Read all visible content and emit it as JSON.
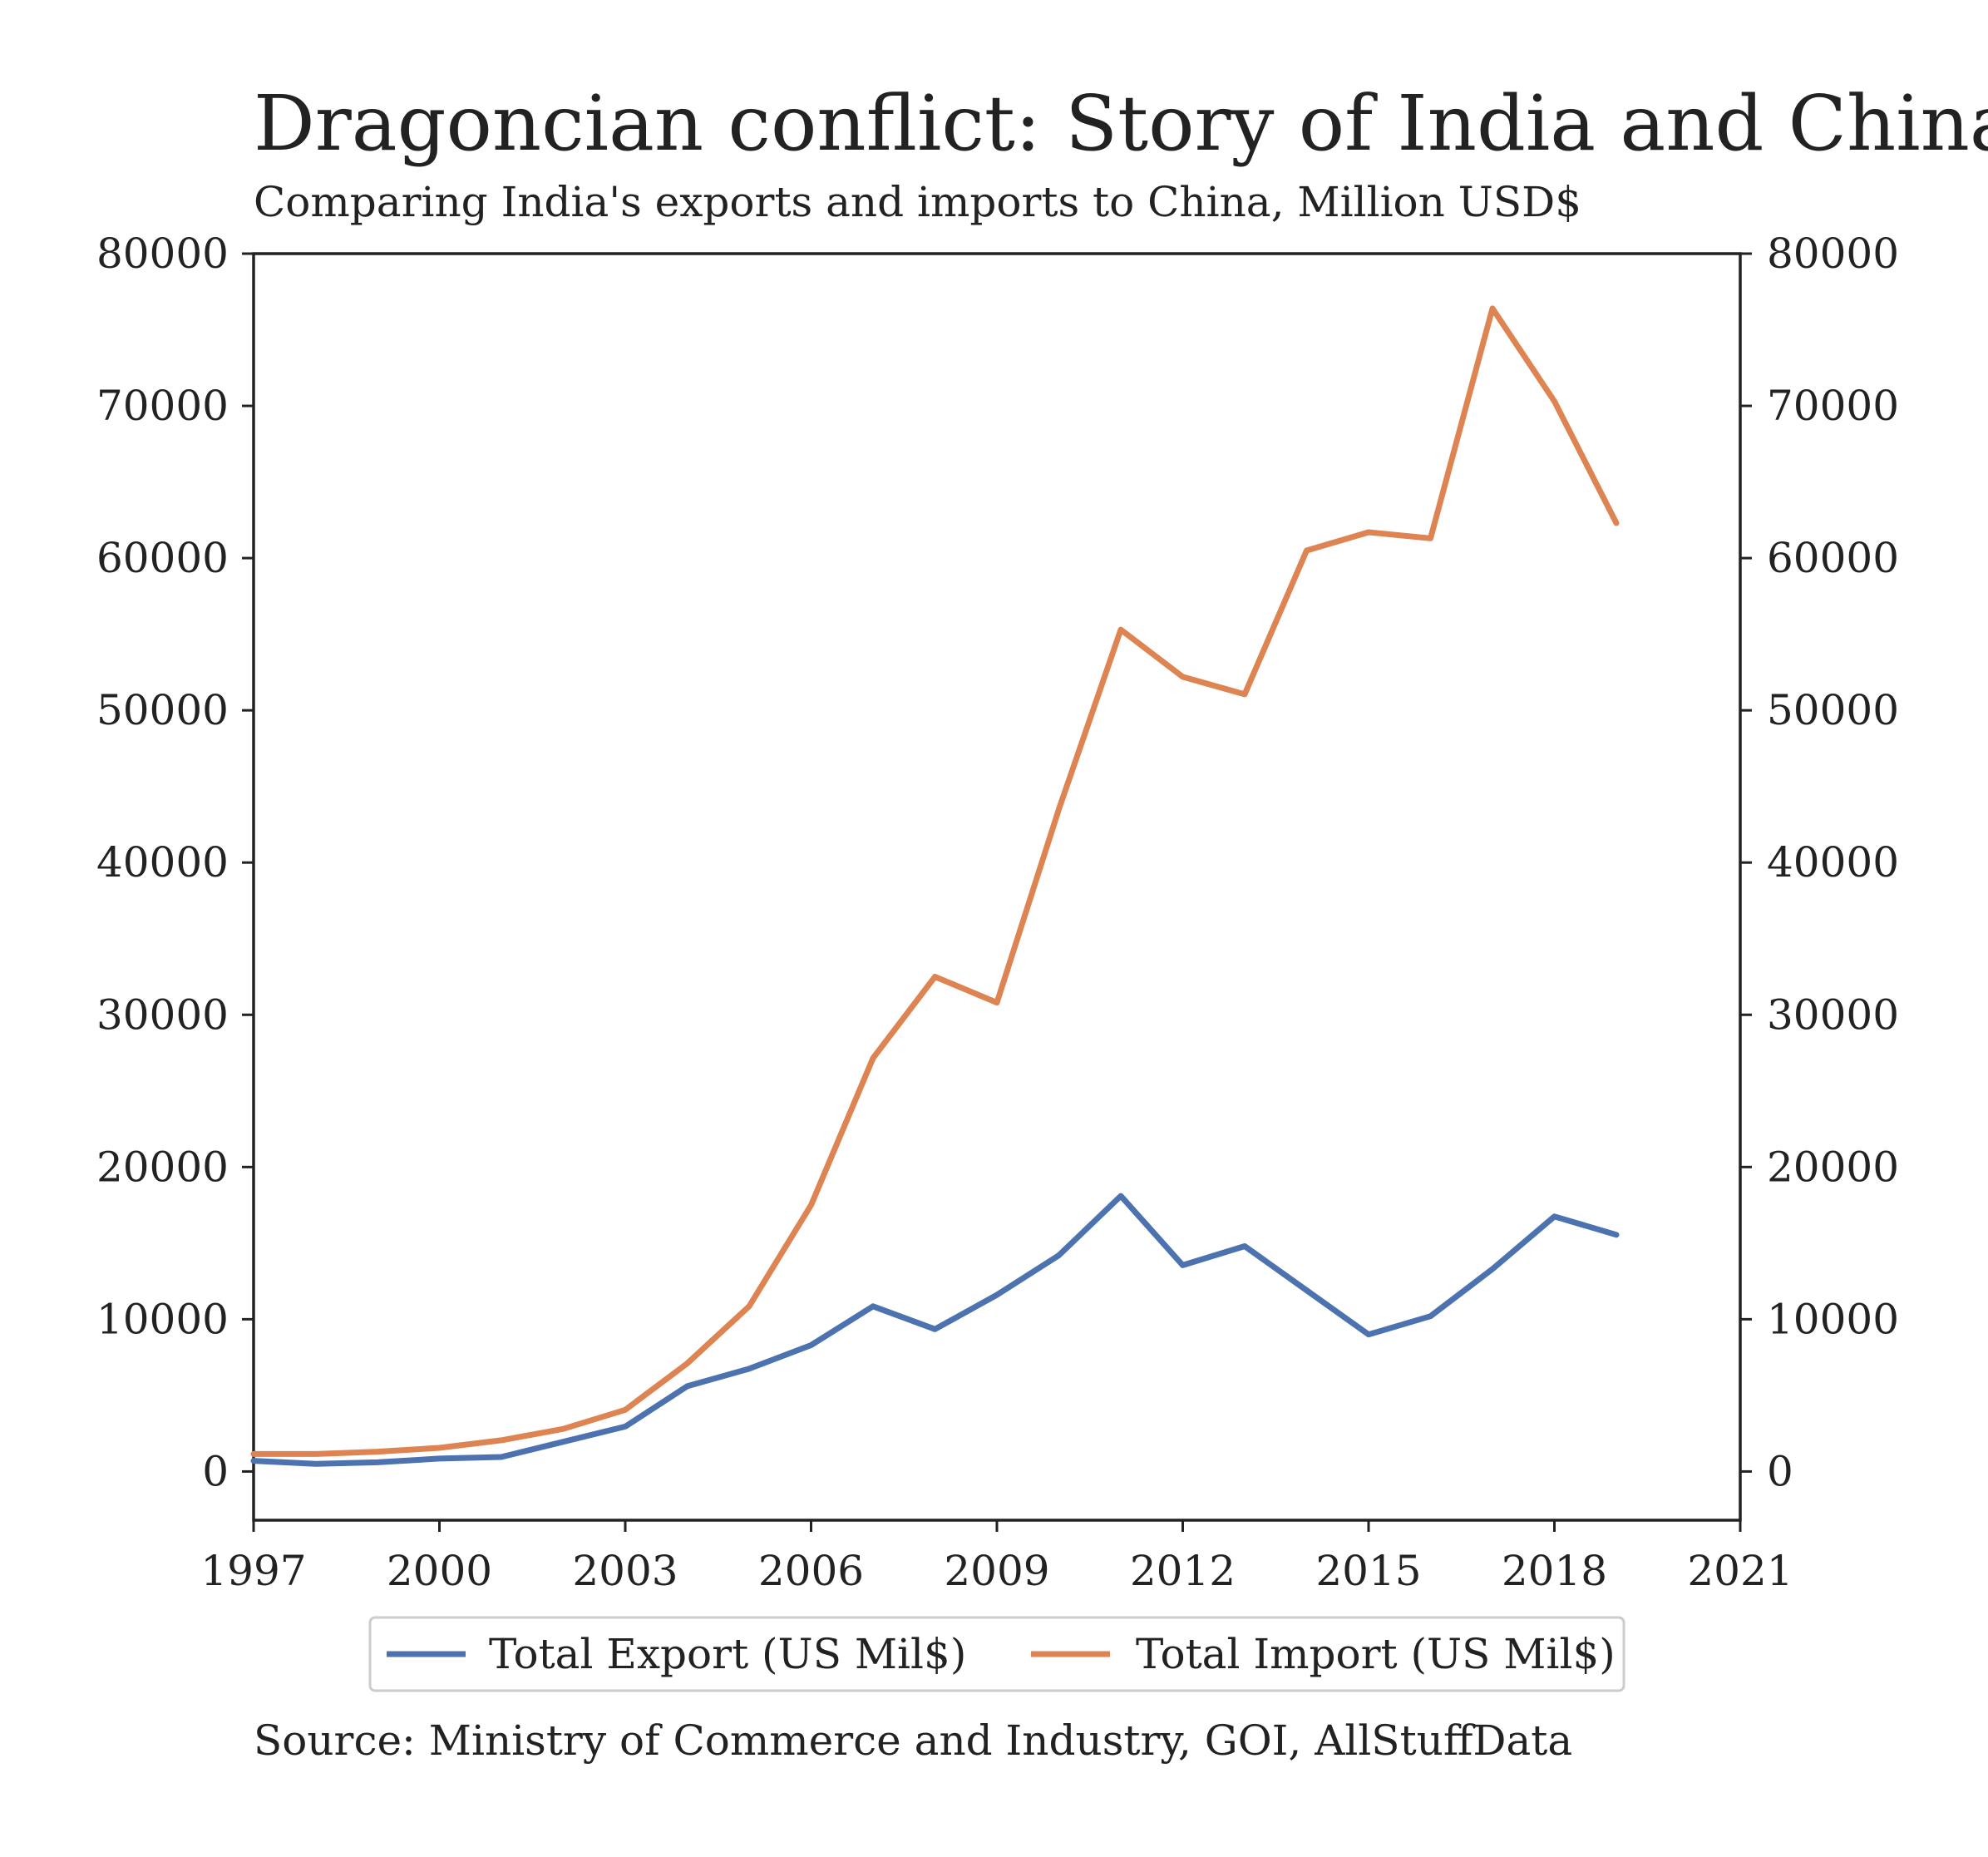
{
  "chart_data": {
    "type": "line",
    "title": "Dragoncian conflict: Story of India and China",
    "subtitle": "Comparing India's exports and imports to China, Million USD$",
    "source": "Source: Ministry of Commerce and Industry, GOI, AllStuffData",
    "xlabel": "",
    "ylabel": "",
    "xlim": [
      1997,
      2021
    ],
    "ylim": [
      -3200,
      80000
    ],
    "x_ticks": [
      1997,
      2000,
      2003,
      2006,
      2009,
      2012,
      2015,
      2018,
      2021
    ],
    "y_ticks": [
      0,
      10000,
      20000,
      30000,
      40000,
      50000,
      60000,
      70000,
      80000
    ],
    "y_axis_right": true,
    "grid": false,
    "legend_position": "bottom-center",
    "x": [
      1997,
      1998,
      1999,
      2000,
      2001,
      2002,
      2003,
      2004,
      2005,
      2006,
      2007,
      2008,
      2009,
      2010,
      2011,
      2012,
      2013,
      2014,
      2015,
      2016,
      2017,
      2018,
      2019
    ],
    "series": [
      {
        "name": "Total Export (US Mil$)",
        "color": "#4c72b0",
        "values": [
          700,
          500,
          600,
          850,
          950,
          1950,
          2950,
          5600,
          6750,
          8300,
          10850,
          9350,
          11600,
          14200,
          18100,
          13550,
          14800,
          11900,
          9000,
          10200,
          13300,
          16750,
          15550
        ]
      },
      {
        "name": "Total Import (US Mil$)",
        "color": "#dd8452",
        "values": [
          1150,
          1150,
          1300,
          1550,
          2050,
          2800,
          4050,
          7100,
          10850,
          17500,
          27150,
          32500,
          30800,
          43500,
          55300,
          52200,
          51050,
          60500,
          61700,
          61300,
          76400,
          70300,
          62300
        ]
      }
    ]
  }
}
